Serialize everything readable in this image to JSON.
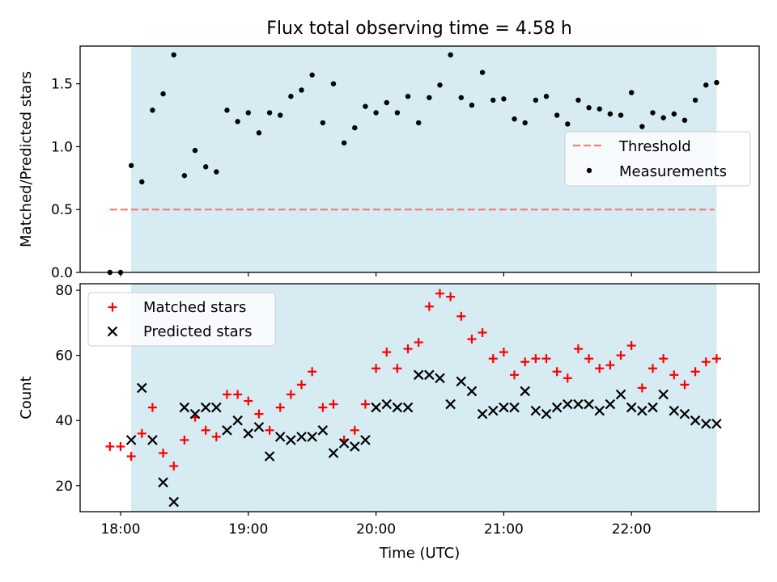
{
  "chart_data": [
    {
      "type": "scatter",
      "title": "Flux total observing time = 4.58 h",
      "xlabel": "",
      "ylabel": "Matched/Predicted stars",
      "ylim": [
        0,
        1.8
      ],
      "yticks": [
        "0.0",
        "0.5",
        "1.0",
        "1.5"
      ],
      "xlim": [
        "17:41",
        "23:00"
      ],
      "shaded_span": [
        "18:05",
        "22:40"
      ],
      "shade_color": "#add8e6",
      "legend_position": "center-right",
      "threshold": {
        "name": "Threshold",
        "value": 0.5,
        "x_start": "17:55",
        "x_end": "22:39",
        "color": "#f08080"
      },
      "series": [
        {
          "name": "Measurements",
          "color": "#000000",
          "marker": "dot",
          "x": [
            "17:55",
            "18:00",
            "18:05",
            "18:10",
            "18:15",
            "18:20",
            "18:25",
            "18:30",
            "18:35",
            "18:40",
            "18:45",
            "18:50",
            "18:55",
            "19:00",
            "19:05",
            "19:10",
            "19:15",
            "19:20",
            "19:25",
            "19:30",
            "19:35",
            "19:40",
            "19:45",
            "19:50",
            "19:55",
            "20:00",
            "20:05",
            "20:10",
            "20:15",
            "20:20",
            "20:25",
            "20:30",
            "20:35",
            "20:40",
            "20:45",
            "20:50",
            "20:55",
            "21:00",
            "21:05",
            "21:10",
            "21:15",
            "21:20",
            "21:25",
            "21:30",
            "21:35",
            "21:40",
            "21:45",
            "21:50",
            "21:55",
            "22:00",
            "22:05",
            "22:10",
            "22:15",
            "22:20",
            "22:25",
            "22:30",
            "22:35",
            "22:40"
          ],
          "values": [
            0.0,
            0.0,
            0.85,
            0.72,
            1.29,
            1.42,
            1.73,
            0.77,
            0.97,
            0.84,
            0.8,
            1.29,
            1.2,
            1.27,
            1.11,
            1.27,
            1.25,
            1.4,
            1.45,
            1.57,
            1.19,
            1.5,
            1.03,
            1.15,
            1.32,
            1.27,
            1.35,
            1.27,
            1.4,
            1.19,
            1.39,
            1.49,
            1.73,
            1.39,
            1.33,
            1.59,
            1.37,
            1.38,
            1.22,
            1.19,
            1.37,
            1.4,
            1.25,
            1.18,
            1.37,
            1.31,
            1.3,
            1.26,
            1.25,
            1.43,
            1.16,
            1.27,
            1.23,
            1.26,
            1.21,
            1.37,
            1.49,
            1.51
          ]
        }
      ]
    },
    {
      "type": "scatter",
      "title": "",
      "xlabel": "Time (UTC)",
      "ylabel": "Count",
      "ylim": [
        12,
        82
      ],
      "yticks": [
        "20",
        "40",
        "60",
        "80"
      ],
      "xlim": [
        "17:41",
        "23:00"
      ],
      "xticks": [
        "18:00",
        "19:00",
        "20:00",
        "21:00",
        "22:00"
      ],
      "shaded_span": [
        "18:05",
        "22:40"
      ],
      "shade_color": "#add8e6",
      "legend_position": "top-left",
      "series": [
        {
          "name": "Matched stars",
          "color": "#ff0000",
          "marker": "plus",
          "x": [
            "17:55",
            "18:00",
            "18:05",
            "18:10",
            "18:15",
            "18:20",
            "18:25",
            "18:30",
            "18:35",
            "18:40",
            "18:45",
            "18:50",
            "18:55",
            "19:00",
            "19:05",
            "19:10",
            "19:15",
            "19:20",
            "19:25",
            "19:30",
            "19:35",
            "19:40",
            "19:45",
            "19:50",
            "19:55",
            "20:00",
            "20:05",
            "20:10",
            "20:15",
            "20:20",
            "20:25",
            "20:30",
            "20:35",
            "20:40",
            "20:45",
            "20:50",
            "20:55",
            "21:00",
            "21:05",
            "21:10",
            "21:15",
            "21:20",
            "21:25",
            "21:30",
            "21:35",
            "21:40",
            "21:45",
            "21:50",
            "21:55",
            "22:00",
            "22:05",
            "22:10",
            "22:15",
            "22:20",
            "22:25",
            "22:30",
            "22:35",
            "22:40"
          ],
          "values": [
            32,
            32,
            29,
            36,
            44,
            30,
            26,
            34,
            41,
            37,
            35,
            48,
            48,
            46,
            42,
            37,
            44,
            48,
            51,
            55,
            44,
            45,
            34,
            37,
            45,
            56,
            61,
            56,
            62,
            64,
            75,
            79,
            78,
            72,
            65,
            67,
            59,
            61,
            54,
            58,
            59,
            59,
            55,
            53,
            62,
            59,
            56,
            57,
            60,
            63,
            50,
            56,
            59,
            54,
            51,
            55,
            58,
            59
          ]
        },
        {
          "name": "Predicted stars",
          "color": "#000000",
          "marker": "x",
          "x": [
            "17:55",
            "18:00",
            "18:05",
            "18:10",
            "18:15",
            "18:20",
            "18:25",
            "18:30",
            "18:35",
            "18:40",
            "18:45",
            "18:50",
            "18:55",
            "19:00",
            "19:05",
            "19:10",
            "19:15",
            "19:20",
            "19:25",
            "19:30",
            "19:35",
            "19:40",
            "19:45",
            "19:50",
            "19:55",
            "20:00",
            "20:05",
            "20:10",
            "20:15",
            "20:20",
            "20:25",
            "20:30",
            "20:35",
            "20:40",
            "20:45",
            "20:50",
            "20:55",
            "21:00",
            "21:05",
            "21:10",
            "21:15",
            "21:20",
            "21:25",
            "21:30",
            "21:35",
            "21:40",
            "21:45",
            "21:50",
            "21:55",
            "22:00",
            "22:05",
            "22:10",
            "22:15",
            "22:20",
            "22:25",
            "22:30",
            "22:35",
            "22:40"
          ],
          "values": [
            null,
            null,
            34,
            50,
            34,
            21,
            15,
            44,
            42,
            44,
            44,
            37,
            40,
            36,
            38,
            29,
            35,
            34,
            35,
            35,
            37,
            30,
            33,
            32,
            34,
            44,
            45,
            44,
            44,
            54,
            54,
            53,
            45,
            52,
            49,
            42,
            43,
            44,
            44,
            49,
            43,
            42,
            44,
            45,
            45,
            45,
            43,
            45,
            48,
            44,
            43,
            44,
            48,
            43,
            42,
            40,
            39,
            39
          ]
        }
      ]
    }
  ]
}
